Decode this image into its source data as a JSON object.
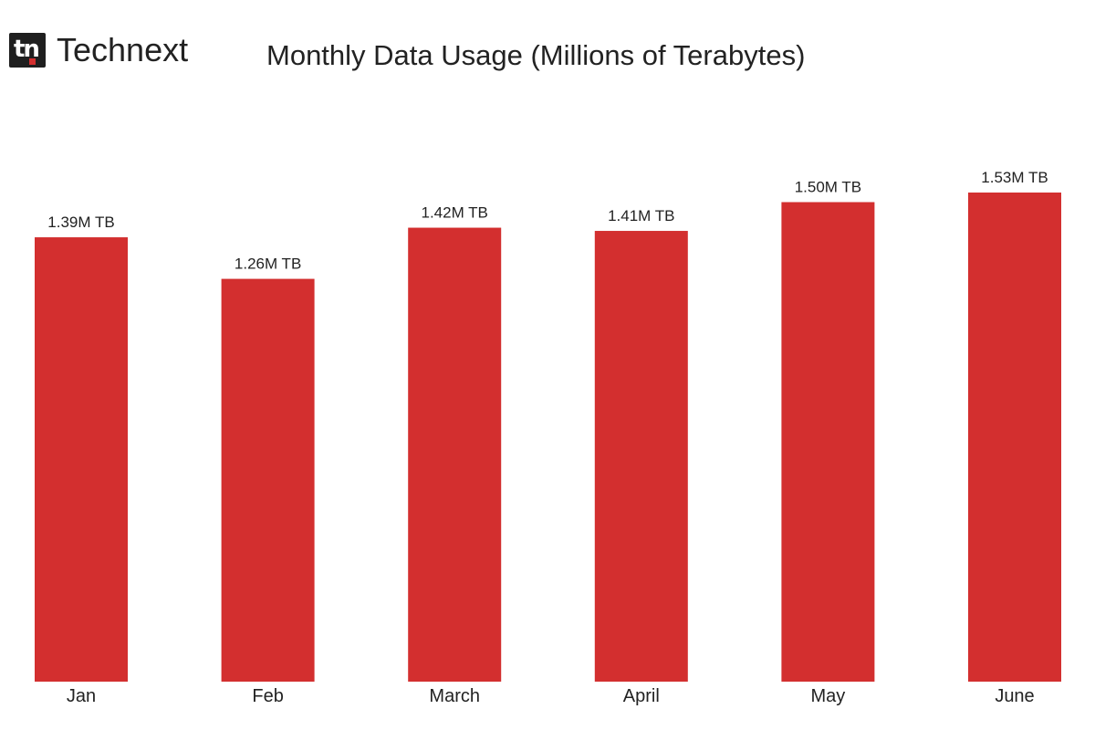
{
  "brand": {
    "logo_text": "tn",
    "name": "Technext"
  },
  "colors": {
    "bar": "#d32f2f",
    "text": "#222222"
  },
  "chart_data": {
    "type": "bar",
    "title": "Monthly Data Usage (Millions of Terabytes)",
    "categories": [
      "Jan",
      "Feb",
      "March",
      "April",
      "May",
      "June"
    ],
    "values": [
      1.39,
      1.26,
      1.42,
      1.41,
      1.5,
      1.53
    ],
    "data_labels": [
      "1.39M TB",
      "1.26M TB",
      "1.42M TB",
      "1.41M TB",
      "1.50M TB",
      "1.53M TB"
    ],
    "xlabel": "",
    "ylabel": "",
    "ylim": [
      0,
      1.53
    ],
    "grid": false,
    "legend": "none"
  }
}
